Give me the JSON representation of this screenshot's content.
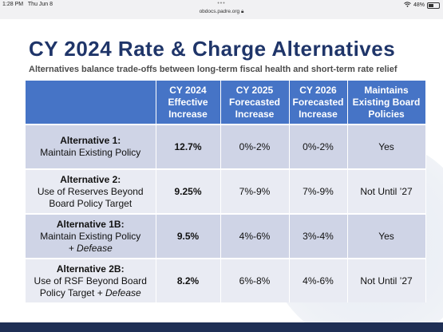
{
  "status": {
    "time": "1:28 PM",
    "date": "Thu Jun 8",
    "url": "obdocs.padre.org",
    "battery": "48%",
    "battery_level": 0.48
  },
  "slide": {
    "title": "CY 2024 Rate & Charge Alternatives",
    "subtitle": "Alternatives balance trade-offs between long-term fiscal health and short-term rate relief",
    "headers": [
      "",
      "CY 2024 Effective Increase",
      "CY 2025 Forecasted Increase",
      "CY 2026 Forecasted Increase",
      "Maintains Existing Board Policies"
    ],
    "rows": [
      {
        "name": "Alternative 1:",
        "desc": "Maintain Existing Policy",
        "emph": "",
        "cy2024": "12.7%",
        "cy2025": "0%-2%",
        "cy2026": "0%-2%",
        "policy": "Yes"
      },
      {
        "name": "Alternative 2:",
        "desc": "Use of Reserves Beyond Board Policy Target",
        "emph": "",
        "cy2024": "9.25%",
        "cy2025": "7%-9%",
        "cy2026": "7%-9%",
        "policy": "Not Until ’27"
      },
      {
        "name": "Alternative 1B:",
        "desc": "Maintain Existing Policy",
        "emph": "+ Defease",
        "cy2024": "9.5%",
        "cy2025": "4%-6%",
        "cy2026": "3%-4%",
        "policy": "Yes"
      },
      {
        "name": "Alternative 2B:",
        "desc": "Use of RSF Beyond Board Policy Target",
        "emph": "+ Defease",
        "cy2024": "8.2%",
        "cy2025": "6%-8%",
        "cy2026": "4%-6%",
        "policy": "Not Until ’27"
      }
    ]
  }
}
